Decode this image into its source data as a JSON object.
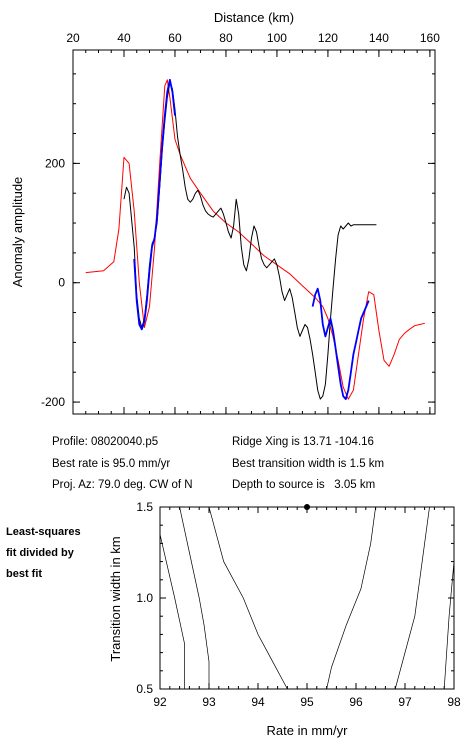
{
  "info": {
    "profile": "Profile: 08020040.p5",
    "best_rate": "Best rate is 95.0 mm/yr",
    "proj_az": "Proj. Az: 79.0 deg. CW of N",
    "ridge_xing": "Ridge Xing is 13.71 -104.16",
    "best_width": "Best transition width is 1.5 km",
    "depth": "Depth to source is   3.05 km"
  },
  "side_note": [
    "Least-squares",
    "fit divided by",
    "best fit"
  ],
  "colors": {
    "observed": "#000000",
    "model": "#ff0000",
    "fit_segment": "#0000ff",
    "contour": "#000000"
  },
  "chart_data": [
    {
      "type": "line",
      "xlabel": "Distance (km)",
      "ylabel": "Anomaly amplitude",
      "xlim": [
        20,
        162
      ],
      "ylim": [
        -220,
        390
      ],
      "xticks": [
        20,
        40,
        60,
        80,
        100,
        120,
        140,
        160
      ],
      "yticks": [
        -200,
        0,
        200
      ],
      "x_axis_position": "top",
      "grid": false,
      "legend": "none",
      "series": [
        {
          "color": "#ff0000",
          "x": [
            25,
            32,
            36,
            38,
            40,
            42,
            44,
            46,
            48,
            50,
            52,
            54,
            56,
            57,
            58,
            60,
            62,
            64,
            66,
            70,
            75,
            80,
            85,
            90,
            95,
            100,
            105,
            110,
            115,
            118,
            120,
            122,
            124,
            126,
            128,
            130,
            132,
            134,
            136,
            138,
            140,
            142,
            144,
            146,
            148,
            150,
            152,
            154,
            156,
            158
          ],
          "y": [
            17,
            20,
            35,
            90,
            210,
            200,
            120,
            0,
            -75,
            -40,
            60,
            200,
            330,
            340,
            310,
            240,
            215,
            195,
            175,
            150,
            120,
            100,
            85,
            65,
            45,
            30,
            15,
            -5,
            -25,
            -40,
            -60,
            -90,
            -130,
            -175,
            -195,
            -180,
            -120,
            -60,
            -15,
            -20,
            -80,
            -130,
            -140,
            -120,
            -95,
            -85,
            -78,
            -72,
            -70,
            -68
          ]
        },
        {
          "color": "#000000",
          "x": [
            40,
            41,
            42,
            44,
            45,
            46,
            47,
            48,
            49,
            50,
            51,
            52,
            53,
            54,
            55,
            56,
            57,
            58,
            59,
            60,
            61,
            62,
            63,
            64,
            65,
            66,
            67,
            68,
            69,
            70,
            71,
            72,
            73,
            74,
            75,
            76,
            77,
            78,
            79,
            80,
            81,
            82,
            83,
            84,
            85,
            86,
            87,
            88,
            89,
            90,
            91,
            92,
            93,
            94,
            95,
            96,
            97,
            98,
            99,
            100,
            101,
            102,
            103,
            104,
            105,
            106,
            107,
            108,
            109,
            110,
            111,
            112,
            113,
            114,
            115,
            116,
            117,
            118,
            119,
            120,
            121,
            122,
            123,
            124,
            125,
            126,
            127,
            128,
            129,
            130,
            131,
            132,
            133,
            134,
            135,
            136,
            137,
            138,
            139
          ],
          "y": [
            140,
            160,
            150,
            60,
            -20,
            -60,
            -75,
            -60,
            -20,
            30,
            65,
            75,
            100,
            160,
            220,
            270,
            310,
            335,
            325,
            290,
            245,
            215,
            190,
            160,
            140,
            135,
            140,
            150,
            155,
            145,
            130,
            120,
            115,
            112,
            110,
            115,
            120,
            125,
            115,
            100,
            85,
            75,
            95,
            140,
            115,
            60,
            30,
            20,
            40,
            75,
            95,
            85,
            60,
            40,
            30,
            25,
            30,
            35,
            40,
            30,
            10,
            -15,
            -30,
            -20,
            -10,
            -25,
            -50,
            -75,
            -90,
            -80,
            -70,
            -75,
            -95,
            -120,
            -150,
            -180,
            -195,
            -190,
            -170,
            -120,
            -60,
            -10,
            40,
            80,
            95,
            90,
            95,
            100,
            95,
            97,
            97,
            97,
            97,
            97,
            97,
            97,
            97,
            97,
            97
          ],
          "note": "observed profile"
        },
        {
          "color": "#0000ff",
          "x": [
            44,
            45,
            46,
            47,
            48,
            49,
            50,
            51,
            52,
            53,
            54,
            55,
            56,
            57,
            58,
            59,
            60
          ],
          "y": [
            40,
            -30,
            -70,
            -78,
            -65,
            -30,
            20,
            60,
            75,
            110,
            170,
            230,
            280,
            320,
            340,
            320,
            280
          ]
        },
        {
          "color": "#0000ff",
          "x": [
            114,
            115,
            116,
            117,
            118,
            119,
            120,
            121,
            122,
            123,
            124,
            125,
            126,
            127,
            128,
            129,
            130,
            131,
            132,
            133,
            134,
            135,
            136
          ],
          "y": [
            -40,
            -20,
            -10,
            -30,
            -70,
            -90,
            -75,
            -60,
            -80,
            -110,
            -140,
            -170,
            -190,
            -195,
            -180,
            -150,
            -120,
            -100,
            -80,
            -60,
            -50,
            -40,
            -30
          ]
        }
      ]
    },
    {
      "type": "line",
      "xlabel": "Rate in mm/yr",
      "ylabel": "Transition width in km",
      "xlim": [
        92,
        98
      ],
      "ylim": [
        0.5,
        1.5
      ],
      "xticks": [
        92,
        93,
        94,
        95,
        96,
        97,
        98
      ],
      "yticks": [
        0.5,
        1.0,
        1.5
      ],
      "grid": false,
      "legend": "none",
      "best_fit_point": {
        "x": 95.0,
        "y": 1.5
      },
      "contours": [
        {
          "x": [
            92.0,
            92.3,
            92.5,
            92.5
          ],
          "y": [
            1.35,
            1.0,
            0.75,
            0.5
          ]
        },
        {
          "x": [
            92.4,
            92.6,
            92.8,
            92.9,
            93.0,
            93.0
          ],
          "y": [
            1.5,
            1.25,
            1.0,
            0.85,
            0.65,
            0.5
          ]
        },
        {
          "x": [
            93.0,
            93.3,
            93.7,
            94.0,
            94.3,
            94.6
          ],
          "y": [
            1.5,
            1.2,
            1.0,
            0.8,
            0.65,
            0.5
          ]
        },
        {
          "x": [
            95.4,
            95.5,
            95.8,
            96.1,
            96.3,
            96.4
          ],
          "y": [
            0.5,
            0.62,
            0.85,
            1.05,
            1.3,
            1.5
          ]
        },
        {
          "x": [
            96.8,
            97.0,
            97.2,
            97.3,
            97.4,
            97.5
          ],
          "y": [
            0.5,
            0.7,
            0.9,
            1.1,
            1.3,
            1.5
          ]
        },
        {
          "x": [
            97.8,
            97.9,
            98.0
          ],
          "y": [
            0.5,
            0.9,
            1.2
          ]
        }
      ]
    }
  ]
}
